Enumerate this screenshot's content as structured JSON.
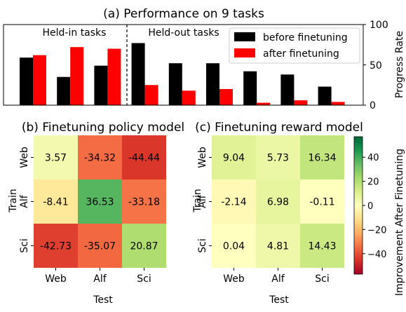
{
  "colors": {
    "before": "#000000",
    "after": "#ff0000",
    "cmap": [
      "#a50026",
      "#d73027",
      "#f46d43",
      "#fdae61",
      "#fee08b",
      "#ffffbf",
      "#d9ef8b",
      "#a6d96a",
      "#66bd63",
      "#1a9850",
      "#006837"
    ]
  },
  "chart_data": [
    {
      "type": "bar",
      "title": "(a) Performance on 9 tasks",
      "ylabel": "Progress Rate",
      "ylim": [
        0,
        100
      ],
      "yticks": [
        "0",
        "50",
        "100"
      ],
      "groups": [
        "Held-in tasks",
        "Held-out tasks"
      ],
      "legend_placement": "top-right",
      "series": [
        {
          "name": "before finetuning",
          "values": [
            59,
            35,
            49,
            77,
            52,
            52,
            42,
            38,
            23
          ]
        },
        {
          "name": "after finetuning",
          "values": [
            62,
            72,
            70,
            25,
            18,
            20,
            3,
            6,
            4
          ]
        }
      ]
    },
    {
      "type": "heatmap",
      "title": "(b) Finetuning policy model",
      "xlabel": "Test",
      "ylabel": "Train",
      "x_categories": [
        "Web",
        "Alf",
        "Sci"
      ],
      "y_categories": [
        "Web",
        "Alf",
        "Sci"
      ],
      "values": [
        [
          3.57,
          -34.32,
          -44.44
        ],
        [
          -8.41,
          36.53,
          -33.18
        ],
        [
          -42.73,
          -35.07,
          20.87
        ]
      ],
      "labels": [
        [
          "3.57",
          "-34.32",
          "-44.44"
        ],
        [
          "-8.41",
          "36.53",
          "-33.18"
        ],
        [
          "-42.73",
          "-35.07",
          "20.87"
        ]
      ]
    },
    {
      "type": "heatmap",
      "title": "(c) Finetuning reward model",
      "xlabel": "Test",
      "ylabel": "Train",
      "x_categories": [
        "Web",
        "Alf",
        "Sci"
      ],
      "y_categories": [
        "Web",
        "Alf",
        "Sci"
      ],
      "values": [
        [
          9.04,
          5.73,
          16.34
        ],
        [
          -2.14,
          6.98,
          -0.11
        ],
        [
          0.04,
          4.81,
          14.43
        ]
      ],
      "labels": [
        [
          "9.04",
          "5.73",
          "16.34"
        ],
        [
          "-2.14",
          "6.98",
          "-0.11"
        ],
        [
          "0.04",
          "4.81",
          "14.43"
        ]
      ]
    },
    {
      "type": "colorbar",
      "label": "Improvement After Finetuning",
      "range": [
        -57,
        57
      ],
      "ticks": [
        {
          "value": 40,
          "label": "40"
        },
        {
          "value": 20,
          "label": "20"
        },
        {
          "value": 0,
          "label": "0"
        },
        {
          "value": -20,
          "label": "−20"
        },
        {
          "value": -40,
          "label": "−40"
        }
      ]
    }
  ]
}
